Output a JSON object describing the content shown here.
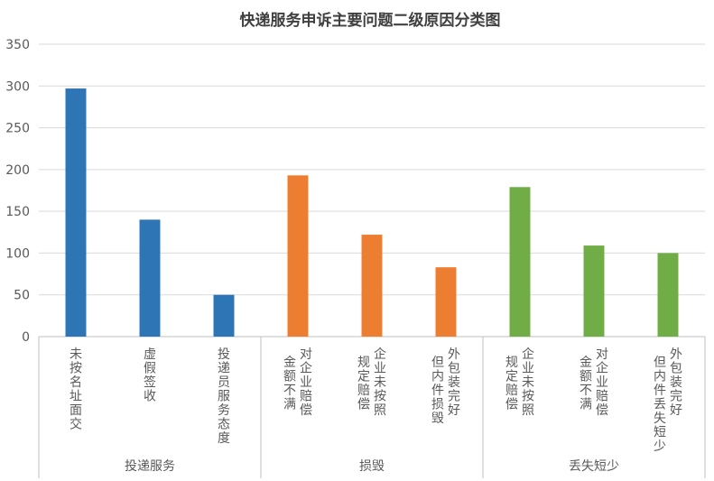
{
  "chart_data": {
    "type": "bar",
    "title": "快递服务申诉主要问题二级原因分类图",
    "xlabel": "",
    "ylabel": "",
    "ylim": [
      0,
      350
    ],
    "yticks": [
      0,
      50,
      100,
      150,
      200,
      250,
      300,
      350
    ],
    "grid": true,
    "legend": "none",
    "groups": [
      {
        "name": "投递服务",
        "color": "#2e75b6",
        "categories": [
          {
            "lines": [
              "未按名址面交"
            ],
            "value": 297
          },
          {
            "lines": [
              "虚假签收"
            ],
            "value": 140
          },
          {
            "lines": [
              "投递员服务态度"
            ],
            "value": 50
          }
        ]
      },
      {
        "name": "损毁",
        "color": "#ed7d31",
        "categories": [
          {
            "lines": [
              "对企业赔偿",
              "金额不满"
            ],
            "value": 193
          },
          {
            "lines": [
              "企业未按照",
              "规定赔偿"
            ],
            "value": 122
          },
          {
            "lines": [
              "外包装完好",
              "但内件损毁"
            ],
            "value": 83
          }
        ]
      },
      {
        "name": "丢失短少",
        "color": "#70ad47",
        "categories": [
          {
            "lines": [
              "企业未按照",
              "规定赔偿"
            ],
            "value": 179
          },
          {
            "lines": [
              "对企业赔偿",
              "金额不满"
            ],
            "value": 109
          },
          {
            "lines": [
              "外包装完好",
              "但内件丢失短少"
            ],
            "value": 100
          }
        ]
      }
    ]
  }
}
